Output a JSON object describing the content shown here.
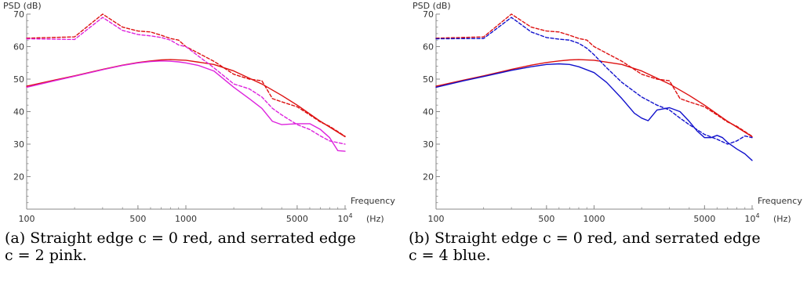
{
  "figures": [
    {
      "caption_line1": "(a) Straight edge c = 0 red, and serrated edge",
      "caption_line2": "c = 2 pink."
    },
    {
      "caption_line1": "(b) Straight edge c = 0 red, and serrated edge",
      "caption_line2": "c = 4 blue."
    }
  ],
  "chart_data": [
    {
      "type": "line",
      "ylabel": "PSD (dB)",
      "xlabel_line1": "Frequency",
      "xlabel_line2": "(Hz)",
      "x_scale": "log",
      "xlim": [
        100,
        10000
      ],
      "ylim": [
        10,
        70
      ],
      "x_ticks": [
        {
          "value": 100,
          "label": "100"
        },
        {
          "value": 500,
          "label": "500"
        },
        {
          "value": 1000,
          "label": "1000"
        },
        {
          "value": 5000,
          "label": "5000"
        },
        {
          "value": 10000,
          "label": "10",
          "sup": "4"
        }
      ],
      "y_ticks": [
        {
          "value": 20,
          "label": "20"
        },
        {
          "value": 30,
          "label": "30"
        },
        {
          "value": 40,
          "label": "40"
        },
        {
          "value": 50,
          "label": "50"
        },
        {
          "value": 60,
          "label": "60"
        },
        {
          "value": 70,
          "label": "70"
        }
      ],
      "grid": false,
      "series": [
        {
          "style": "solid",
          "color": "#dd1111",
          "x": [
            100,
            150,
            200,
            300,
            400,
            500,
            600,
            700,
            800,
            1000,
            1500,
            2000,
            3000,
            4000,
            5000,
            7000,
            10000
          ],
          "y": [
            47.8,
            49.7,
            51.0,
            53.0,
            54.3,
            55.1,
            55.6,
            55.9,
            56.0,
            55.8,
            54.5,
            52.5,
            48.5,
            45.0,
            42.0,
            37.0,
            32.3
          ]
        },
        {
          "style": "dashed",
          "color": "#dd1111",
          "x": [
            100,
            200,
            300,
            400,
            500,
            600,
            700,
            800,
            900,
            1000,
            1500,
            2000,
            2500,
            3000,
            3500,
            4000,
            5000,
            6000,
            7000,
            8000,
            10000
          ],
          "y": [
            62.6,
            63.0,
            70.0,
            66.0,
            64.8,
            64.5,
            63.5,
            62.5,
            62.0,
            60.0,
            55.5,
            51.5,
            50.0,
            49.5,
            44.0,
            43.0,
            41.5,
            39.0,
            36.8,
            35.5,
            32.4
          ]
        },
        {
          "style": "solid",
          "color": "#dd22dd",
          "x": [
            100,
            150,
            200,
            300,
            400,
            500,
            600,
            700,
            800,
            900,
            1000,
            1200,
            1500,
            2000,
            2500,
            3000,
            3500,
            4000,
            5000,
            6000,
            7000,
            8000,
            9000,
            10000
          ],
          "y": [
            47.5,
            49.5,
            50.9,
            52.9,
            54.2,
            55.0,
            55.4,
            55.6,
            55.5,
            55.3,
            55.0,
            54.2,
            52.5,
            47.5,
            44.0,
            41.0,
            37.0,
            36.0,
            36.3,
            36.3,
            34.5,
            32.0,
            28.0,
            27.8
          ]
        },
        {
          "style": "dashed",
          "color": "#dd22dd",
          "x": [
            100,
            200,
            300,
            400,
            500,
            600,
            700,
            800,
            900,
            1000,
            1500,
            2000,
            2500,
            3000,
            3500,
            4000,
            5000,
            6000,
            7000,
            8000,
            10000
          ],
          "y": [
            62.4,
            62.2,
            69.0,
            65.0,
            63.7,
            63.3,
            62.8,
            62.0,
            60.5,
            60.0,
            53.5,
            48.5,
            47.0,
            44.5,
            41.0,
            39.0,
            36.0,
            34.5,
            32.5,
            31.0,
            30.0
          ]
        }
      ]
    },
    {
      "type": "line",
      "ylabel": "PSD (dB)",
      "xlabel_line1": "Frequency",
      "xlabel_line2": "(Hz)",
      "x_scale": "log",
      "xlim": [
        100,
        10000
      ],
      "ylim": [
        10,
        70
      ],
      "x_ticks": [
        {
          "value": 100,
          "label": "100"
        },
        {
          "value": 500,
          "label": "500"
        },
        {
          "value": 1000,
          "label": "1000"
        },
        {
          "value": 5000,
          "label": "5000"
        },
        {
          "value": 10000,
          "label": "10",
          "sup": "4"
        }
      ],
      "y_ticks": [
        {
          "value": 20,
          "label": "20"
        },
        {
          "value": 30,
          "label": "30"
        },
        {
          "value": 40,
          "label": "40"
        },
        {
          "value": 50,
          "label": "50"
        },
        {
          "value": 60,
          "label": "60"
        },
        {
          "value": 70,
          "label": "70"
        }
      ],
      "grid": false,
      "series": [
        {
          "style": "solid",
          "color": "#dd1111",
          "x": [
            100,
            150,
            200,
            300,
            400,
            500,
            600,
            700,
            800,
            1000,
            1500,
            2000,
            3000,
            4000,
            5000,
            7000,
            10000
          ],
          "y": [
            47.8,
            49.7,
            51.0,
            53.0,
            54.3,
            55.1,
            55.6,
            55.9,
            56.0,
            55.8,
            54.5,
            52.5,
            48.5,
            45.0,
            42.0,
            37.0,
            32.3
          ]
        },
        {
          "style": "dashed",
          "color": "#dd1111",
          "x": [
            100,
            200,
            300,
            400,
            500,
            600,
            700,
            800,
            900,
            1000,
            1500,
            2000,
            2500,
            3000,
            3500,
            4000,
            5000,
            6000,
            7000,
            8000,
            10000
          ],
          "y": [
            62.6,
            63.0,
            70.0,
            66.0,
            64.8,
            64.5,
            63.5,
            62.5,
            62.0,
            60.0,
            55.5,
            51.5,
            50.0,
            49.5,
            44.0,
            43.0,
            41.5,
            39.0,
            36.8,
            35.5,
            32.4
          ]
        },
        {
          "style": "solid",
          "color": "#1111cc",
          "x": [
            100,
            150,
            200,
            300,
            400,
            500,
            600,
            700,
            800,
            1000,
            1200,
            1500,
            1800,
            2000,
            2200,
            2500,
            3000,
            3500,
            4000,
            4500,
            5000,
            5500,
            6000,
            6500,
            7000,
            8000,
            9000,
            10000
          ],
          "y": [
            47.5,
            49.5,
            50.8,
            52.7,
            53.8,
            54.5,
            54.7,
            54.5,
            53.8,
            52.0,
            49.0,
            44.0,
            39.5,
            38.0,
            37.2,
            40.5,
            41.2,
            40.0,
            37.0,
            34.0,
            32.0,
            32.0,
            32.7,
            32.0,
            30.5,
            28.5,
            27.0,
            25.0
          ]
        },
        {
          "style": "dashed",
          "color": "#1111cc",
          "x": [
            100,
            200,
            300,
            400,
            500,
            600,
            700,
            800,
            900,
            1000,
            1200,
            1500,
            2000,
            2500,
            3000,
            3500,
            4000,
            5000,
            6000,
            7000,
            8000,
            9000,
            10000
          ],
          "y": [
            62.4,
            62.5,
            69.0,
            64.5,
            62.8,
            62.3,
            62.0,
            61.0,
            59.5,
            57.5,
            53.5,
            49.0,
            44.5,
            42.0,
            40.5,
            38.0,
            36.0,
            33.0,
            31.5,
            30.0,
            31.0,
            32.5,
            32.0
          ]
        }
      ]
    }
  ]
}
